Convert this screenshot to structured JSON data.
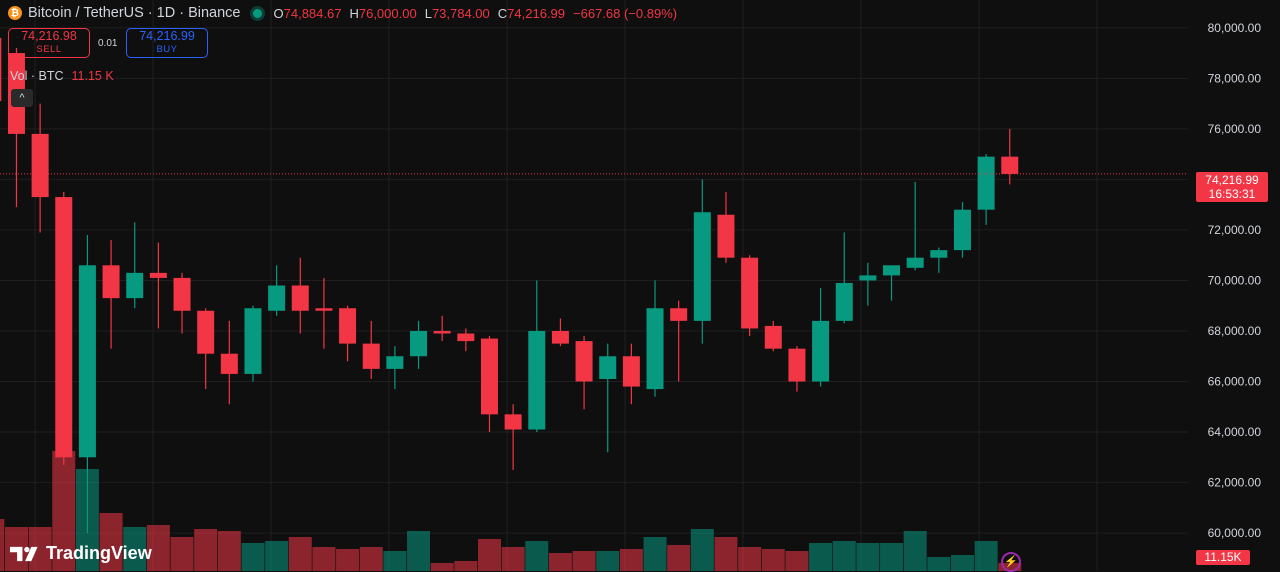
{
  "header": {
    "coin_symbol": "₿",
    "title": "Bitcoin / TetherUS · 1D · Binance",
    "open_label": "O",
    "open_value": "74,884.67",
    "high_label": "H",
    "high_value": "76,000.00",
    "low_label": "L",
    "low_value": "73,784.00",
    "close_label": "C",
    "close_value": "74,216.99",
    "change": "−667.68 (−0.89%)"
  },
  "trade": {
    "sell_price": "74,216.98",
    "sell_label": "SELL",
    "spread": "0.01",
    "buy_price": "74,216.99",
    "buy_label": "BUY"
  },
  "volume_legend": {
    "label": "Vol · BTC",
    "value": "11.15 K",
    "collapse_icon": "^"
  },
  "price_tag": {
    "price": "74,216.99",
    "countdown": "16:53:31"
  },
  "volume_tag": "11.15K",
  "brand": "TradingView",
  "colors": {
    "up": "#089981",
    "down": "#f23645",
    "background": "#0f0f0f",
    "grid": "#1f1f1f"
  },
  "icons": {
    "brand": "tradingview-logo-icon",
    "live": "live-status-dot-icon",
    "bolt": "lightning-bolt-icon"
  },
  "chart_data": {
    "type": "candlestick",
    "title": "Bitcoin / TetherUS · 1D · Binance",
    "ylim": [
      58500,
      81100
    ],
    "y_ticks": [
      "80,000.00",
      "78,000.00",
      "76,000.00",
      "74,000.00",
      "72,000.00",
      "70,000.00",
      "68,000.00",
      "66,000.00",
      "64,000.00",
      "62,000.00",
      "60,000.00"
    ],
    "last_price": 74216.99,
    "candles": [
      {
        "o": 79600,
        "h": 80800,
        "l": 74900,
        "c": 77100
      },
      {
        "o": 79000,
        "h": 79200,
        "l": 72900,
        "c": 75800
      },
      {
        "o": 75800,
        "h": 77000,
        "l": 71900,
        "c": 73300
      },
      {
        "o": 73300,
        "h": 73500,
        "l": 62700,
        "c": 63000
      },
      {
        "o": 63000,
        "h": 71800,
        "l": 60000,
        "c": 70600
      },
      {
        "o": 70600,
        "h": 71600,
        "l": 67300,
        "c": 69300
      },
      {
        "o": 69300,
        "h": 72300,
        "l": 68900,
        "c": 70300
      },
      {
        "o": 70300,
        "h": 71500,
        "l": 68100,
        "c": 70100
      },
      {
        "o": 70100,
        "h": 70300,
        "l": 67900,
        "c": 68800
      },
      {
        "o": 68800,
        "h": 68900,
        "l": 65700,
        "c": 67100
      },
      {
        "o": 67100,
        "h": 68400,
        "l": 65100,
        "c": 66300
      },
      {
        "o": 66300,
        "h": 69000,
        "l": 66000,
        "c": 68900
      },
      {
        "o": 68800,
        "h": 70600,
        "l": 68600,
        "c": 69800
      },
      {
        "o": 69800,
        "h": 70900,
        "l": 67900,
        "c": 68800
      },
      {
        "o": 68900,
        "h": 70100,
        "l": 67300,
        "c": 68800
      },
      {
        "o": 68900,
        "h": 69000,
        "l": 66800,
        "c": 67500
      },
      {
        "o": 67500,
        "h": 68400,
        "l": 66100,
        "c": 66500
      },
      {
        "o": 66500,
        "h": 67400,
        "l": 65700,
        "c": 67000
      },
      {
        "o": 67000,
        "h": 68400,
        "l": 66500,
        "c": 68000
      },
      {
        "o": 68000,
        "h": 68600,
        "l": 67600,
        "c": 67900
      },
      {
        "o": 67900,
        "h": 68100,
        "l": 67200,
        "c": 67600
      },
      {
        "o": 67700,
        "h": 67800,
        "l": 64000,
        "c": 64700
      },
      {
        "o": 64700,
        "h": 65100,
        "l": 62500,
        "c": 64100
      },
      {
        "o": 64100,
        "h": 70000,
        "l": 64000,
        "c": 68000
      },
      {
        "o": 68000,
        "h": 68500,
        "l": 67400,
        "c": 67500
      },
      {
        "o": 67600,
        "h": 67800,
        "l": 64900,
        "c": 66000
      },
      {
        "o": 66100,
        "h": 67500,
        "l": 63200,
        "c": 67000
      },
      {
        "o": 67000,
        "h": 67500,
        "l": 65100,
        "c": 65800
      },
      {
        "o": 65700,
        "h": 70000,
        "l": 65400,
        "c": 68900
      },
      {
        "o": 68900,
        "h": 69200,
        "l": 66000,
        "c": 68400
      },
      {
        "o": 68400,
        "h": 74000,
        "l": 67500,
        "c": 72700
      },
      {
        "o": 72600,
        "h": 73500,
        "l": 70700,
        "c": 70900
      },
      {
        "o": 70900,
        "h": 71000,
        "l": 67800,
        "c": 68100
      },
      {
        "o": 68200,
        "h": 68400,
        "l": 67200,
        "c": 67300
      },
      {
        "o": 67300,
        "h": 67400,
        "l": 65600,
        "c": 66000
      },
      {
        "o": 66000,
        "h": 69700,
        "l": 65800,
        "c": 68400
      },
      {
        "o": 68400,
        "h": 71900,
        "l": 68300,
        "c": 69900
      },
      {
        "o": 70000,
        "h": 70700,
        "l": 69000,
        "c": 70200
      },
      {
        "o": 70200,
        "h": 70600,
        "l": 69200,
        "c": 70600
      },
      {
        "o": 70500,
        "h": 73900,
        "l": 70400,
        "c": 70900
      },
      {
        "o": 70900,
        "h": 71300,
        "l": 70300,
        "c": 71200
      },
      {
        "o": 71200,
        "h": 73100,
        "l": 70900,
        "c": 72800
      },
      {
        "o": 72800,
        "h": 75000,
        "l": 72200,
        "c": 74900
      },
      {
        "o": 74900,
        "h": 76000,
        "l": 73800,
        "c": 74217
      }
    ],
    "volume_units": "relative",
    "volume_max_ref": 60000,
    "volumes": [
      52,
      44,
      44,
      120,
      102,
      58,
      44,
      46,
      34,
      42,
      40,
      28,
      30,
      34,
      24,
      22,
      24,
      20,
      40,
      8,
      10,
      32,
      24,
      30,
      18,
      20,
      20,
      22,
      34,
      26,
      42,
      34,
      24,
      22,
      20,
      28,
      30,
      28,
      28,
      40,
      14,
      16,
      30,
      8
    ]
  }
}
